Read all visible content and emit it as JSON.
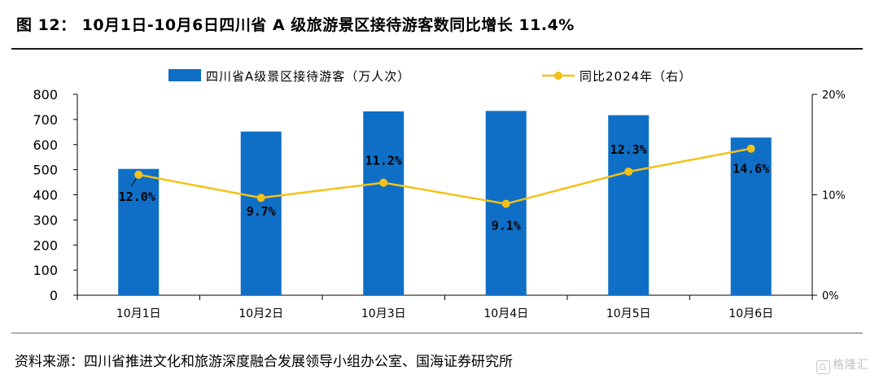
{
  "page": {
    "title": "图 12： 10月1日-10月6日四川省 A 级旅游景区接待游客数同比增长 11.4%",
    "source": "资料来源：四川省推进文化和旅游深度融合发展领导小组办公室、国海证券研究所",
    "watermark": "格隆汇",
    "watermark_logo": "G"
  },
  "chart_data": {
    "type": "bar",
    "categories": [
      "10月1日",
      "10月2日",
      "10月3日",
      "10月4日",
      "10月5日",
      "10月6日"
    ],
    "series": [
      {
        "name": "四川省A级景区接待游客（万人次）",
        "type": "bar",
        "axis": "left",
        "color": "#0f6fc6",
        "values": [
          503,
          652,
          732,
          734,
          717,
          628
        ]
      },
      {
        "name": "同比2024年（右）",
        "type": "line",
        "axis": "right",
        "color": "#f5c117",
        "values": [
          12.0,
          9.7,
          11.2,
          9.1,
          12.3,
          14.6
        ],
        "labels": [
          "12.0%",
          "9.7%",
          "11.2%",
          "9.1%",
          "12.3%",
          "14.6%"
        ]
      }
    ],
    "ylim": [
      0,
      800
    ],
    "yticks": [
      "0",
      "100",
      "200",
      "300",
      "400",
      "500",
      "600",
      "700",
      "800"
    ],
    "y2lim": [
      0,
      20
    ],
    "y2ticks": [
      "0%",
      "10%",
      "20%"
    ],
    "legend_position": "top",
    "grid": false
  }
}
